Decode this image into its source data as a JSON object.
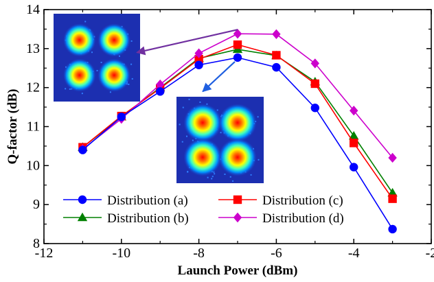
{
  "chart_data": {
    "type": "line",
    "xlabel": "Launch Power (dBm)",
    "ylabel": "Q-factor (dB)",
    "xlim": [
      -12,
      -2
    ],
    "ylim": [
      8,
      14
    ],
    "xticks": [
      -12,
      -10,
      -8,
      -6,
      -4,
      -2
    ],
    "yticks": [
      8,
      9,
      10,
      11,
      12,
      13,
      14
    ],
    "x": [
      -11,
      -10,
      -9,
      -8,
      -7,
      -6,
      -5,
      -4,
      -3
    ],
    "series": [
      {
        "name": "Distribution (a)",
        "color": "#0000ff",
        "marker": "circle",
        "values": [
          10.4,
          11.25,
          11.9,
          12.58,
          12.77,
          12.52,
          11.48,
          9.96,
          8.37
        ]
      },
      {
        "name": "Distribution (b)",
        "color": "#008000",
        "marker": "triangle",
        "values": [
          10.47,
          11.25,
          12.0,
          12.75,
          12.98,
          12.82,
          12.15,
          10.76,
          9.3
        ]
      },
      {
        "name": "Distribution (c)",
        "color": "#ff0000",
        "marker": "square",
        "values": [
          10.47,
          11.27,
          11.98,
          12.73,
          13.1,
          12.83,
          12.1,
          10.58,
          9.15
        ]
      },
      {
        "name": "Distribution (d)",
        "color": "#cc00cc",
        "marker": "diamond",
        "values": [
          10.42,
          11.2,
          12.08,
          12.88,
          13.38,
          13.37,
          12.62,
          11.41,
          10.2
        ]
      }
    ],
    "legend_position": "bottom-center",
    "grid": false,
    "insets": [
      {
        "type": "constellation",
        "points_to_series": "Distribution (d)",
        "arrow_color": "#7030a0",
        "target_x": -9.6,
        "target_y": 12.9
      },
      {
        "type": "constellation",
        "points_to_series": "Distribution (a)",
        "arrow_color": "#1f5fe0",
        "target_x": -7.9,
        "target_y": 11.9
      }
    ]
  }
}
